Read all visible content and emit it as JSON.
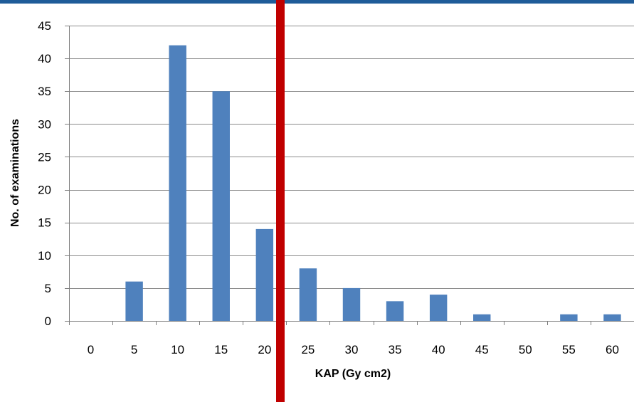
{
  "chart_data": {
    "type": "bar",
    "xlabel": "KAP (Gy cm2)",
    "ylabel": "No. of examinations",
    "categories": [
      "0",
      "5",
      "10",
      "15",
      "20",
      "25",
      "30",
      "35",
      "40",
      "45",
      "50",
      "55",
      "60"
    ],
    "values": [
      0,
      6,
      42,
      35,
      14,
      8,
      5,
      3,
      4,
      1,
      0,
      1,
      1
    ],
    "ylim": [
      0,
      45
    ],
    "yticks": [
      "0",
      "5",
      "10",
      "15",
      "20",
      "25",
      "30",
      "35",
      "40",
      "45"
    ],
    "grid": true,
    "legend": "none",
    "colors": {
      "bar": "#4f81bd",
      "marker_line": "#c00000",
      "header_band": "#1f5c99",
      "grid": "#8c8c8c"
    }
  }
}
